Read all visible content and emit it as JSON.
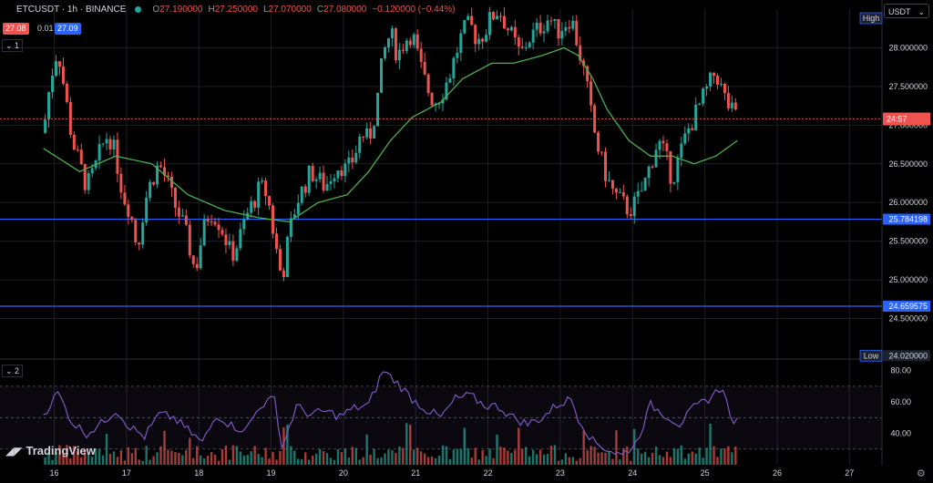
{
  "header": {
    "symbol": "ETCUSDT · 1h · BINANCE",
    "open_label": "O",
    "open": "27.190000",
    "high_label": "H",
    "high": "27.250000",
    "low_label": "L",
    "low": "27.070000",
    "close_label": "C",
    "close": "27.080000",
    "change": "−0.120000 (−0.44%)",
    "bid": "27.08",
    "spread": "0.01",
    "ask": "27.09"
  },
  "currency_selector": "USDT",
  "pane_labels": {
    "main": "1",
    "rsi": "2"
  },
  "countdown": "24:57",
  "logo_text": "TradingView",
  "colors": {
    "up": "#26a69a",
    "down": "#ef5350",
    "ma": "#4caf50",
    "rsi": "#7e57c2",
    "hline": "#2962ff"
  },
  "chart_data": {
    "type": "candlestick",
    "price_axis": {
      "min": 24.0,
      "max": 28.5,
      "ticks": [
        "28.000000",
        "27.500000",
        "27.000000",
        "26.500000",
        "26.000000",
        "25.500000",
        "25.000000",
        "24.500000"
      ]
    },
    "x_ticks": [
      {
        "label": "16",
        "x": 3
      },
      {
        "label": "17",
        "x": 23
      },
      {
        "label": "18",
        "x": 43
      },
      {
        "label": "19",
        "x": 63
      },
      {
        "label": "20",
        "x": 83
      },
      {
        "label": "21",
        "x": 103
      },
      {
        "label": "22",
        "x": 123
      },
      {
        "label": "23",
        "x": 143
      },
      {
        "label": "24",
        "x": 163
      },
      {
        "label": "25",
        "x": 183
      },
      {
        "label": "26",
        "x": 203
      },
      {
        "label": "27",
        "x": 223
      }
    ],
    "x_range": [
      -12,
      232
    ],
    "horizontal_lines": [
      {
        "value": 25.784198,
        "label": "25.784198"
      },
      {
        "value": 24.659575,
        "label": "24.659575"
      }
    ],
    "current_price": 27.08,
    "high_label": "High",
    "low_label": "Low",
    "low_value": "24.020000",
    "price_path": [
      [
        0,
        26.9
      ],
      [
        2,
        27.6
      ],
      [
        4,
        28.0
      ],
      [
        6,
        27.4
      ],
      [
        8,
        26.8
      ],
      [
        10,
        26.5
      ],
      [
        12,
        26.2
      ],
      [
        14,
        26.4
      ],
      [
        16,
        26.7
      ],
      [
        18,
        26.9
      ],
      [
        20,
        26.6
      ],
      [
        22,
        26.1
      ],
      [
        24,
        25.9
      ],
      [
        26,
        25.4
      ],
      [
        28,
        26.0
      ],
      [
        30,
        26.3
      ],
      [
        32,
        26.5
      ],
      [
        34,
        26.3
      ],
      [
        36,
        26.0
      ],
      [
        38,
        25.8
      ],
      [
        40,
        25.5
      ],
      [
        42,
        25.1
      ],
      [
        44,
        25.6
      ],
      [
        46,
        25.9
      ],
      [
        48,
        25.8
      ],
      [
        50,
        25.6
      ],
      [
        52,
        25.3
      ],
      [
        54,
        25.5
      ],
      [
        56,
        25.8
      ],
      [
        58,
        26.0
      ],
      [
        60,
        26.2
      ],
      [
        62,
        26.1
      ],
      [
        64,
        25.5
      ],
      [
        66,
        25.0
      ],
      [
        68,
        25.6
      ],
      [
        70,
        26.0
      ],
      [
        72,
        26.2
      ],
      [
        74,
        26.4
      ],
      [
        76,
        26.3
      ],
      [
        78,
        26.2
      ],
      [
        80,
        26.4
      ],
      [
        82,
        26.5
      ],
      [
        84,
        26.4
      ],
      [
        86,
        26.6
      ],
      [
        88,
        26.9
      ],
      [
        90,
        26.8
      ],
      [
        92,
        27.2
      ],
      [
        94,
        27.9
      ],
      [
        96,
        28.2
      ],
      [
        98,
        27.9
      ],
      [
        100,
        28.1
      ],
      [
        102,
        28.2
      ],
      [
        104,
        27.8
      ],
      [
        106,
        27.5
      ],
      [
        108,
        27.3
      ],
      [
        110,
        27.4
      ],
      [
        112,
        27.6
      ],
      [
        114,
        27.9
      ],
      [
        116,
        28.2
      ],
      [
        118,
        28.3
      ],
      [
        120,
        28.1
      ],
      [
        122,
        28.2
      ],
      [
        124,
        28.4
      ],
      [
        126,
        28.5
      ],
      [
        128,
        28.3
      ],
      [
        130,
        28.1
      ],
      [
        132,
        27.9
      ],
      [
        134,
        28.1
      ],
      [
        136,
        28.2
      ],
      [
        138,
        28.3
      ],
      [
        140,
        28.4
      ],
      [
        142,
        28.2
      ],
      [
        144,
        28.3
      ],
      [
        146,
        28.4
      ],
      [
        148,
        28.0
      ],
      [
        150,
        27.6
      ],
      [
        152,
        27.0
      ],
      [
        154,
        26.6
      ],
      [
        156,
        26.3
      ],
      [
        158,
        26.1
      ],
      [
        160,
        26.0
      ],
      [
        162,
        25.9
      ],
      [
        164,
        26.0
      ],
      [
        166,
        26.2
      ],
      [
        168,
        26.5
      ],
      [
        170,
        26.8
      ],
      [
        172,
        26.6
      ],
      [
        174,
        26.3
      ],
      [
        176,
        26.6
      ],
      [
        178,
        26.9
      ],
      [
        180,
        27.1
      ],
      [
        182,
        27.3
      ],
      [
        184,
        27.5
      ],
      [
        186,
        27.7
      ],
      [
        188,
        27.4
      ],
      [
        190,
        27.2
      ],
      [
        192,
        27.08
      ]
    ],
    "ma_path": [
      [
        0,
        26.7
      ],
      [
        10,
        26.4
      ],
      [
        20,
        26.6
      ],
      [
        30,
        26.5
      ],
      [
        40,
        26.1
      ],
      [
        50,
        25.9
      ],
      [
        60,
        25.8
      ],
      [
        68,
        25.75
      ],
      [
        76,
        26.0
      ],
      [
        84,
        26.1
      ],
      [
        90,
        26.4
      ],
      [
        96,
        26.8
      ],
      [
        102,
        27.1
      ],
      [
        110,
        27.3
      ],
      [
        116,
        27.6
      ],
      [
        124,
        27.8
      ],
      [
        130,
        27.8
      ],
      [
        138,
        27.9
      ],
      [
        144,
        28.0
      ],
      [
        148,
        27.9
      ],
      [
        152,
        27.6
      ],
      [
        156,
        27.2
      ],
      [
        162,
        26.8
      ],
      [
        168,
        26.6
      ],
      [
        174,
        26.6
      ],
      [
        180,
        26.5
      ],
      [
        186,
        26.6
      ],
      [
        192,
        26.8
      ]
    ],
    "rsi": {
      "axis_ticks": [
        "80.00",
        "60.00",
        "40.00"
      ],
      "min": 20,
      "max": 85,
      "band_upper": 70,
      "band_lower": 30,
      "mid": 50,
      "path": [
        [
          0,
          52
        ],
        [
          4,
          66
        ],
        [
          8,
          47
        ],
        [
          12,
          40
        ],
        [
          16,
          46
        ],
        [
          20,
          55
        ],
        [
          24,
          44
        ],
        [
          28,
          38
        ],
        [
          32,
          52
        ],
        [
          36,
          50
        ],
        [
          40,
          42
        ],
        [
          44,
          34
        ],
        [
          48,
          52
        ],
        [
          52,
          45
        ],
        [
          56,
          42
        ],
        [
          60,
          58
        ],
        [
          64,
          62
        ],
        [
          66,
          31
        ],
        [
          70,
          57
        ],
        [
          74,
          52
        ],
        [
          78,
          54
        ],
        [
          82,
          51
        ],
        [
          86,
          56
        ],
        [
          90,
          58
        ],
        [
          94,
          80
        ],
        [
          98,
          72
        ],
        [
          102,
          62
        ],
        [
          106,
          55
        ],
        [
          110,
          50
        ],
        [
          114,
          62
        ],
        [
          118,
          64
        ],
        [
          122,
          58
        ],
        [
          126,
          57
        ],
        [
          130,
          50
        ],
        [
          134,
          46
        ],
        [
          138,
          50
        ],
        [
          142,
          58
        ],
        [
          146,
          62
        ],
        [
          148,
          50
        ],
        [
          152,
          35
        ],
        [
          156,
          30
        ],
        [
          160,
          26
        ],
        [
          164,
          34
        ],
        [
          168,
          58
        ],
        [
          172,
          52
        ],
        [
          176,
          46
        ],
        [
          180,
          56
        ],
        [
          184,
          62
        ],
        [
          188,
          70
        ],
        [
          190,
          50
        ],
        [
          192,
          47
        ]
      ]
    }
  }
}
